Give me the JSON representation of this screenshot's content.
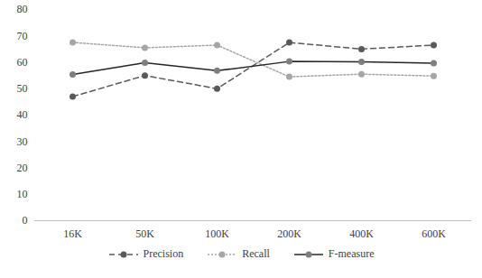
{
  "chart_data": {
    "type": "line",
    "categories": [
      "16K",
      "50K",
      "100K",
      "200K",
      "400K",
      "600K"
    ],
    "ylim": [
      0,
      80
    ],
    "yticks": [
      0,
      10,
      20,
      30,
      40,
      50,
      60,
      70,
      80
    ],
    "grid": false,
    "legend": "bottom",
    "series": [
      {
        "name": "Precision",
        "color": "#595959",
        "line_style": "dashed",
        "marker": "circle",
        "values": [
          47,
          55,
          50,
          67.5,
          65,
          66.5
        ]
      },
      {
        "name": "Recall",
        "color": "#a6a6a6",
        "line_style": "dotted",
        "marker": "circle",
        "values": [
          67.5,
          65.5,
          66.5,
          54.5,
          55.5,
          54.8
        ]
      },
      {
        "name": "F-measure",
        "color": "#7f7f7f",
        "line_style": "solid",
        "marker": "circle",
        "values": [
          55.4,
          59.8,
          56.8,
          60.3,
          60.2,
          59.7
        ]
      }
    ]
  }
}
